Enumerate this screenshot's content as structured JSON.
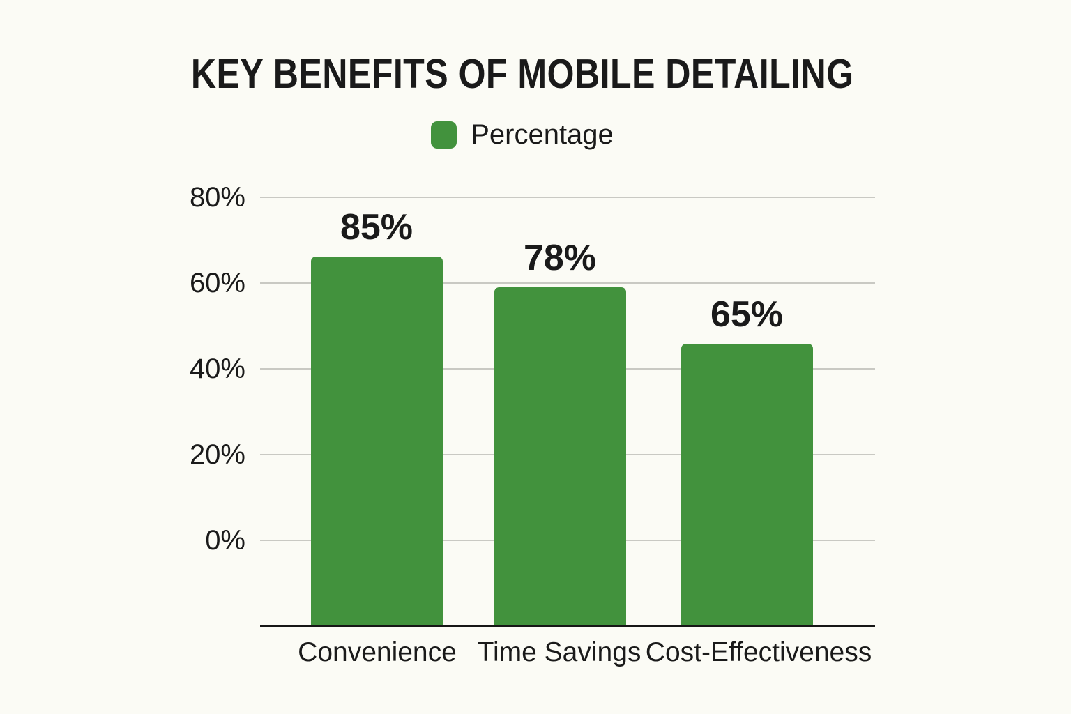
{
  "chart_data": {
    "type": "bar",
    "title": "KEY BENEFITS OF MOBILE DETAILING",
    "categories": [
      "Convenience",
      "Time Savings",
      "Cost-Effectiveness"
    ],
    "series": [
      {
        "name": "Percentage",
        "values": [
          85,
          78,
          65
        ]
      }
    ],
    "value_labels": [
      "85%",
      "78%",
      "65%"
    ],
    "y_ticks": [
      {
        "value": 80,
        "label": "80%"
      },
      {
        "value": 60,
        "label": "60%"
      },
      {
        "value": 40,
        "label": "40%"
      },
      {
        "value": 20,
        "label": "20%"
      },
      {
        "value": 0,
        "label": "0%"
      }
    ],
    "ylim": [
      -20,
      100
    ],
    "xlabel": "",
    "ylabel": "",
    "grid": true,
    "legend": {
      "label": "Percentage",
      "position": "top"
    },
    "colors": {
      "bar": "#42923D",
      "background": "#FBFBF5",
      "gridline": "#C9C9C3",
      "axis_line": "#161616",
      "text": "#1A1A1A"
    }
  }
}
